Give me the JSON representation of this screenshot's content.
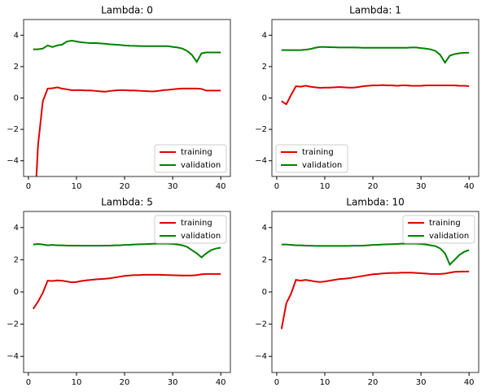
{
  "chart_data": [
    {
      "type": "line",
      "title": "Lambda: 0",
      "legend": "lower right",
      "x": [
        1,
        2,
        3,
        4,
        5,
        6,
        7,
        8,
        9,
        10,
        11,
        12,
        13,
        14,
        15,
        16,
        17,
        18,
        19,
        20,
        21,
        22,
        23,
        24,
        25,
        26,
        27,
        28,
        29,
        30,
        31,
        32,
        33,
        34,
        35,
        36,
        37,
        38,
        39,
        40
      ],
      "xlim": [
        -1,
        42
      ],
      "xticks": [
        0,
        10,
        20,
        30,
        40
      ],
      "ylim": [
        -5,
        5
      ],
      "yticks": [
        -4,
        -2,
        0,
        2,
        4
      ],
      "series": [
        {
          "name": "training",
          "color": "#e00000",
          "values": [
            -9,
            -3,
            -0.2,
            0.6,
            0.62,
            0.68,
            0.6,
            0.55,
            0.5,
            0.5,
            0.5,
            0.48,
            0.48,
            0.45,
            0.42,
            0.4,
            0.45,
            0.48,
            0.5,
            0.5,
            0.48,
            0.48,
            0.46,
            0.45,
            0.43,
            0.42,
            0.45,
            0.5,
            0.52,
            0.55,
            0.58,
            0.6,
            0.6,
            0.6,
            0.6,
            0.58,
            0.47,
            0.47,
            0.47,
            0.47
          ]
        },
        {
          "name": "validation",
          "color": "#008000",
          "values": [
            3.1,
            3.1,
            3.15,
            3.35,
            3.25,
            3.35,
            3.4,
            3.6,
            3.65,
            3.6,
            3.55,
            3.52,
            3.5,
            3.5,
            3.48,
            3.45,
            3.42,
            3.4,
            3.38,
            3.35,
            3.33,
            3.32,
            3.31,
            3.3,
            3.3,
            3.3,
            3.3,
            3.3,
            3.3,
            3.26,
            3.22,
            3.15,
            3.0,
            2.75,
            2.3,
            2.85,
            2.9,
            2.9,
            2.9,
            2.9
          ]
        }
      ]
    },
    {
      "type": "line",
      "title": "Lambda: 1",
      "legend": "lower left",
      "x": [
        1,
        2,
        3,
        4,
        5,
        6,
        7,
        8,
        9,
        10,
        11,
        12,
        13,
        14,
        15,
        16,
        17,
        18,
        19,
        20,
        21,
        22,
        23,
        24,
        25,
        26,
        27,
        28,
        29,
        30,
        31,
        32,
        33,
        34,
        35,
        36,
        37,
        38,
        39,
        40
      ],
      "xlim": [
        -1,
        42
      ],
      "xticks": [
        0,
        10,
        20,
        30,
        40
      ],
      "ylim": [
        -5,
        5
      ],
      "yticks": [
        -4,
        -2,
        0,
        2,
        4
      ],
      "series": [
        {
          "name": "training",
          "color": "#e00000",
          "values": [
            -0.2,
            -0.4,
            0.2,
            0.75,
            0.72,
            0.78,
            0.72,
            0.68,
            0.65,
            0.66,
            0.66,
            0.68,
            0.7,
            0.68,
            0.66,
            0.66,
            0.7,
            0.75,
            0.78,
            0.8,
            0.8,
            0.82,
            0.8,
            0.8,
            0.78,
            0.8,
            0.8,
            0.78,
            0.78,
            0.78,
            0.8,
            0.8,
            0.8,
            0.8,
            0.8,
            0.8,
            0.8,
            0.78,
            0.78,
            0.76
          ]
        },
        {
          "name": "validation",
          "color": "#008000",
          "values": [
            3.05,
            3.05,
            3.05,
            3.05,
            3.05,
            3.08,
            3.12,
            3.2,
            3.25,
            3.25,
            3.24,
            3.23,
            3.22,
            3.22,
            3.22,
            3.22,
            3.21,
            3.2,
            3.2,
            3.2,
            3.2,
            3.2,
            3.2,
            3.2,
            3.2,
            3.2,
            3.2,
            3.22,
            3.22,
            3.18,
            3.15,
            3.1,
            3.0,
            2.75,
            2.25,
            2.7,
            2.8,
            2.85,
            2.88,
            2.88
          ]
        }
      ]
    },
    {
      "type": "line",
      "title": "Lambda: 5",
      "legend": "upper right",
      "x": [
        1,
        2,
        3,
        4,
        5,
        6,
        7,
        8,
        9,
        10,
        11,
        12,
        13,
        14,
        15,
        16,
        17,
        18,
        19,
        20,
        21,
        22,
        23,
        24,
        25,
        26,
        27,
        28,
        29,
        30,
        31,
        32,
        33,
        34,
        35,
        36,
        37,
        38,
        39,
        40
      ],
      "xlim": [
        -1,
        42
      ],
      "xticks": [
        0,
        10,
        20,
        30,
        40
      ],
      "ylim": [
        -5,
        5
      ],
      "yticks": [
        -4,
        -2,
        0,
        2,
        4
      ],
      "series": [
        {
          "name": "training",
          "color": "#e00000",
          "values": [
            -1.05,
            -0.6,
            -0.05,
            0.7,
            0.68,
            0.72,
            0.7,
            0.65,
            0.6,
            0.62,
            0.68,
            0.72,
            0.75,
            0.78,
            0.8,
            0.82,
            0.85,
            0.9,
            0.95,
            1.0,
            1.02,
            1.05,
            1.05,
            1.07,
            1.07,
            1.07,
            1.07,
            1.06,
            1.05,
            1.04,
            1.03,
            1.02,
            1.02,
            1.02,
            1.05,
            1.1,
            1.12,
            1.12,
            1.12,
            1.12
          ]
        },
        {
          "name": "validation",
          "color": "#008000",
          "values": [
            2.95,
            2.98,
            2.95,
            2.9,
            2.92,
            2.9,
            2.9,
            2.88,
            2.88,
            2.88,
            2.87,
            2.87,
            2.87,
            2.87,
            2.87,
            2.88,
            2.88,
            2.9,
            2.9,
            2.92,
            2.93,
            2.95,
            2.96,
            2.97,
            2.98,
            2.99,
            3.0,
            3.0,
            3.0,
            2.98,
            2.95,
            2.9,
            2.8,
            2.6,
            2.4,
            2.15,
            2.4,
            2.6,
            2.7,
            2.75
          ]
        }
      ]
    },
    {
      "type": "line",
      "title": "Lambda: 10",
      "legend": "upper right",
      "x": [
        1,
        2,
        3,
        4,
        5,
        6,
        7,
        8,
        9,
        10,
        11,
        12,
        13,
        14,
        15,
        16,
        17,
        18,
        19,
        20,
        21,
        22,
        23,
        24,
        25,
        26,
        27,
        28,
        29,
        30,
        31,
        32,
        33,
        34,
        35,
        36,
        37,
        38,
        39,
        40
      ],
      "xlim": [
        -1,
        42
      ],
      "xticks": [
        0,
        10,
        20,
        30,
        40
      ],
      "ylim": [
        -5,
        5
      ],
      "yticks": [
        -4,
        -2,
        0,
        2,
        4
      ],
      "series": [
        {
          "name": "training",
          "color": "#e00000",
          "values": [
            -2.3,
            -0.7,
            -0.1,
            0.75,
            0.7,
            0.75,
            0.7,
            0.65,
            0.62,
            0.65,
            0.7,
            0.75,
            0.8,
            0.82,
            0.85,
            0.9,
            0.95,
            1.0,
            1.05,
            1.1,
            1.12,
            1.15,
            1.17,
            1.18,
            1.18,
            1.2,
            1.2,
            1.2,
            1.18,
            1.16,
            1.14,
            1.12,
            1.12,
            1.12,
            1.14,
            1.2,
            1.25,
            1.26,
            1.27,
            1.27
          ]
        },
        {
          "name": "validation",
          "color": "#008000",
          "values": [
            2.95,
            2.95,
            2.92,
            2.9,
            2.9,
            2.88,
            2.87,
            2.86,
            2.86,
            2.86,
            2.86,
            2.86,
            2.86,
            2.86,
            2.86,
            2.87,
            2.87,
            2.88,
            2.9,
            2.92,
            2.93,
            2.95,
            2.96,
            2.97,
            2.98,
            3.0,
            3.0,
            3.0,
            3.0,
            2.98,
            2.95,
            2.9,
            2.85,
            2.7,
            2.4,
            1.7,
            2.0,
            2.3,
            2.5,
            2.6
          ]
        }
      ]
    }
  ]
}
